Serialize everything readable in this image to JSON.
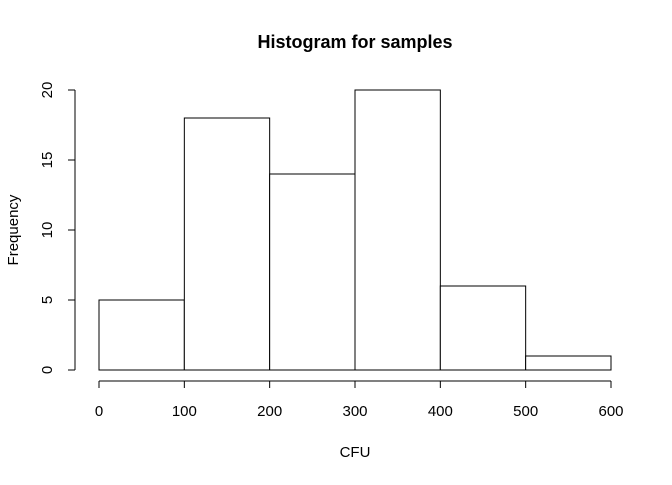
{
  "chart_data": {
    "type": "bar",
    "title": "Histogram for samples",
    "xlabel": "CFU",
    "ylabel": "Frequency",
    "bins": [
      {
        "start": 0,
        "end": 100,
        "value": 5
      },
      {
        "start": 100,
        "end": 200,
        "value": 18
      },
      {
        "start": 200,
        "end": 300,
        "value": 14
      },
      {
        "start": 300,
        "end": 400,
        "value": 20
      },
      {
        "start": 400,
        "end": 500,
        "value": 6
      },
      {
        "start": 500,
        "end": 600,
        "value": 1
      }
    ],
    "xlim": [
      0,
      600
    ],
    "ylim": [
      0,
      20
    ],
    "xticks": [
      "0",
      "100",
      "200",
      "300",
      "400",
      "500",
      "600"
    ],
    "yticks": [
      "0",
      "5",
      "10",
      "15",
      "20"
    ],
    "grid": false,
    "legend": "none",
    "colors": {
      "bar_fill": "#ffffff",
      "bar_stroke": "#000000",
      "axis": "#000000",
      "text": "#000000"
    }
  }
}
